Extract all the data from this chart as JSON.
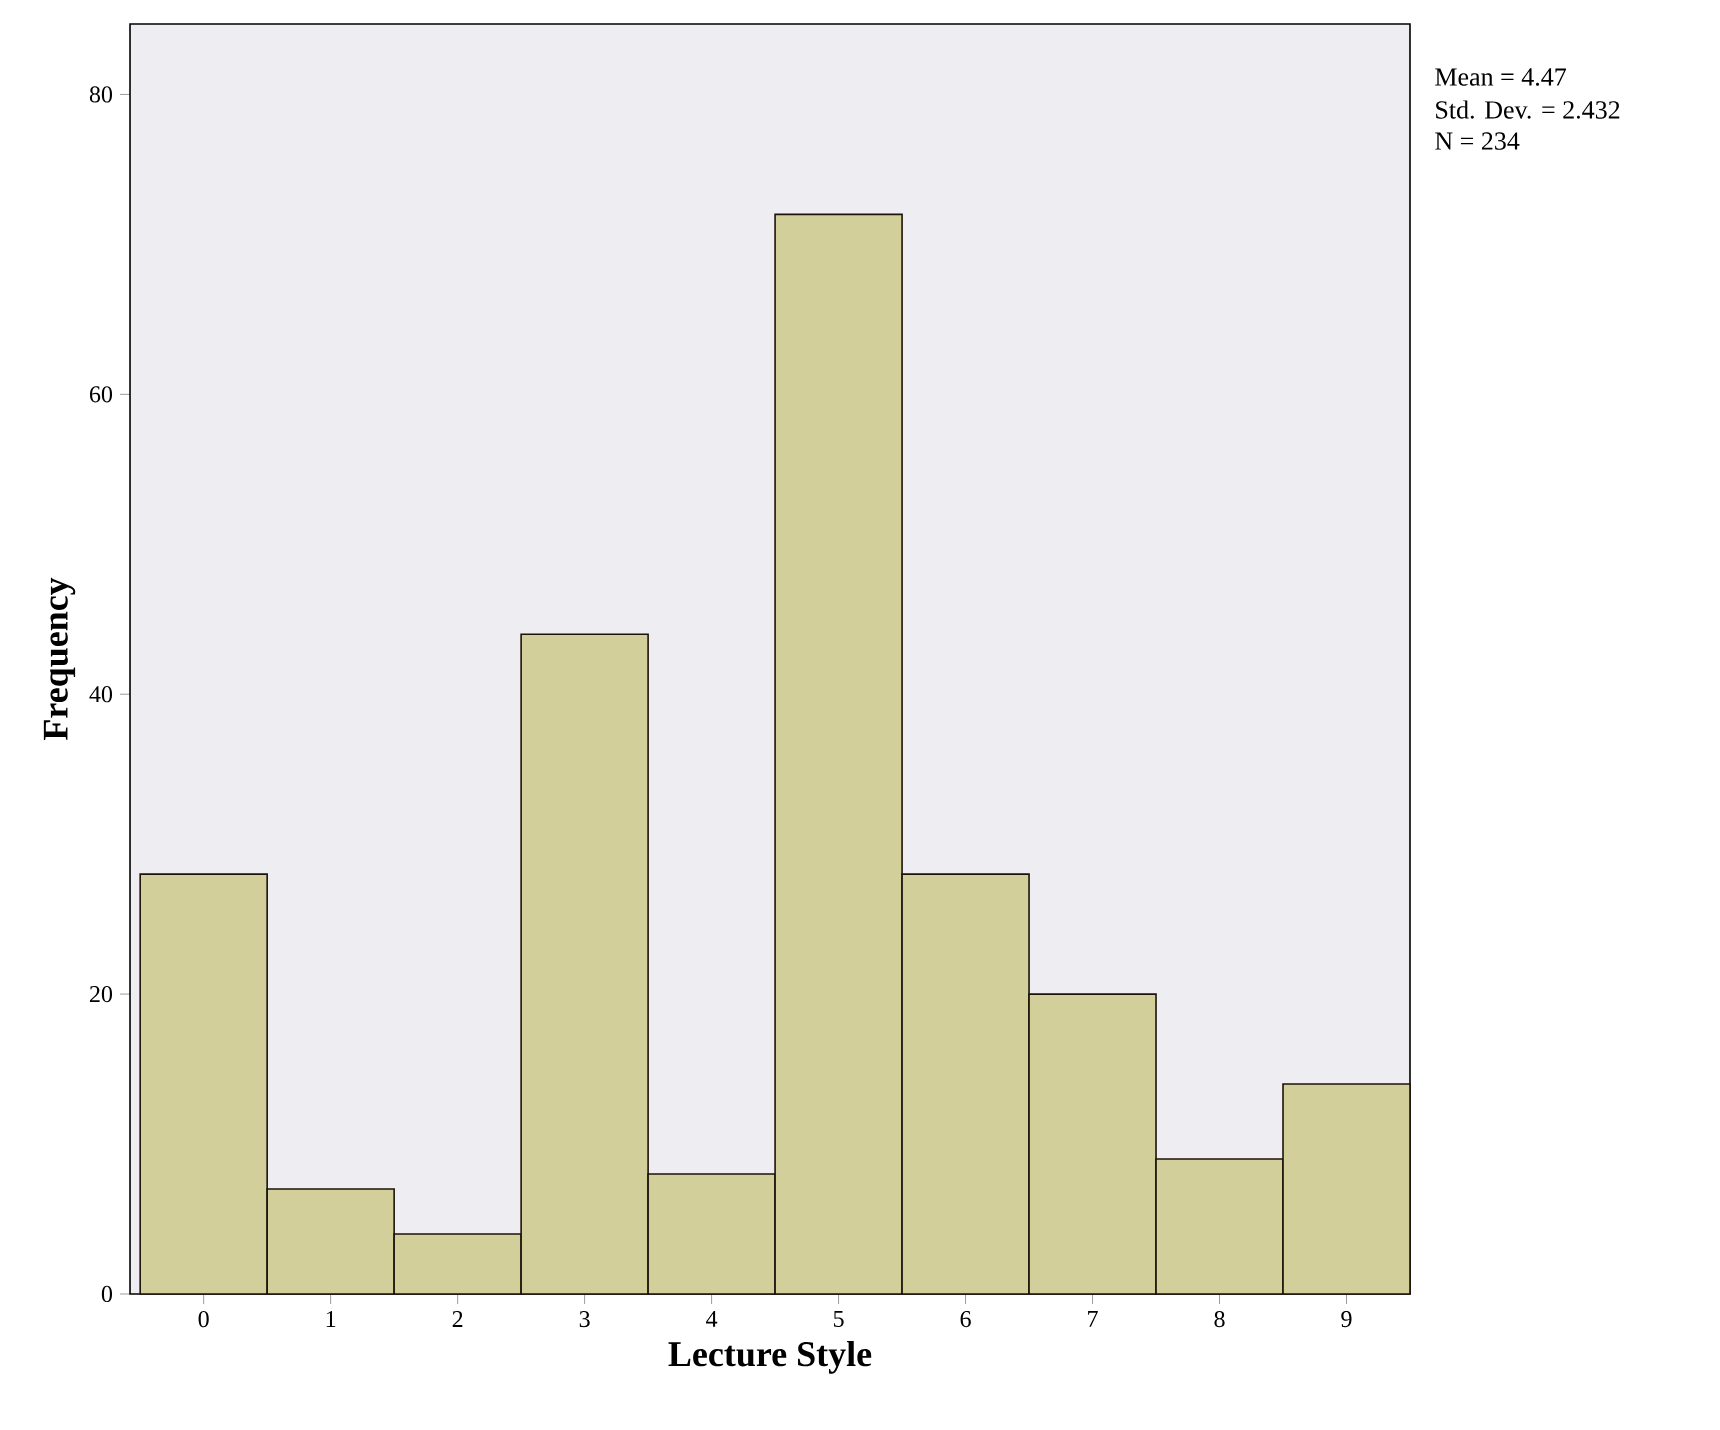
{
  "chart_data": {
    "type": "histogram",
    "xlabel": "Lecture Style",
    "ylabel": "Frequency",
    "bins": [
      -0.5,
      0.5,
      1.5,
      2.5,
      3.5,
      4.5,
      5.5,
      6.5,
      7.5,
      8.5,
      9.5
    ],
    "values": [
      28,
      7,
      4,
      44,
      8,
      72,
      28,
      20,
      9,
      14
    ],
    "color": "#d3cf9b",
    "xlim": [
      -0.58,
      9.5
    ],
    "ylim": [
      0,
      84.7
    ],
    "xticks": [
      0,
      1,
      2,
      3,
      4,
      5,
      6,
      7,
      8,
      9
    ],
    "yticks": [
      0,
      20,
      40,
      60,
      80
    ],
    "grid": false,
    "annotations": [
      "Mean = 4.47",
      "Std. Dev. = 2.432",
      "N = 234"
    ]
  }
}
